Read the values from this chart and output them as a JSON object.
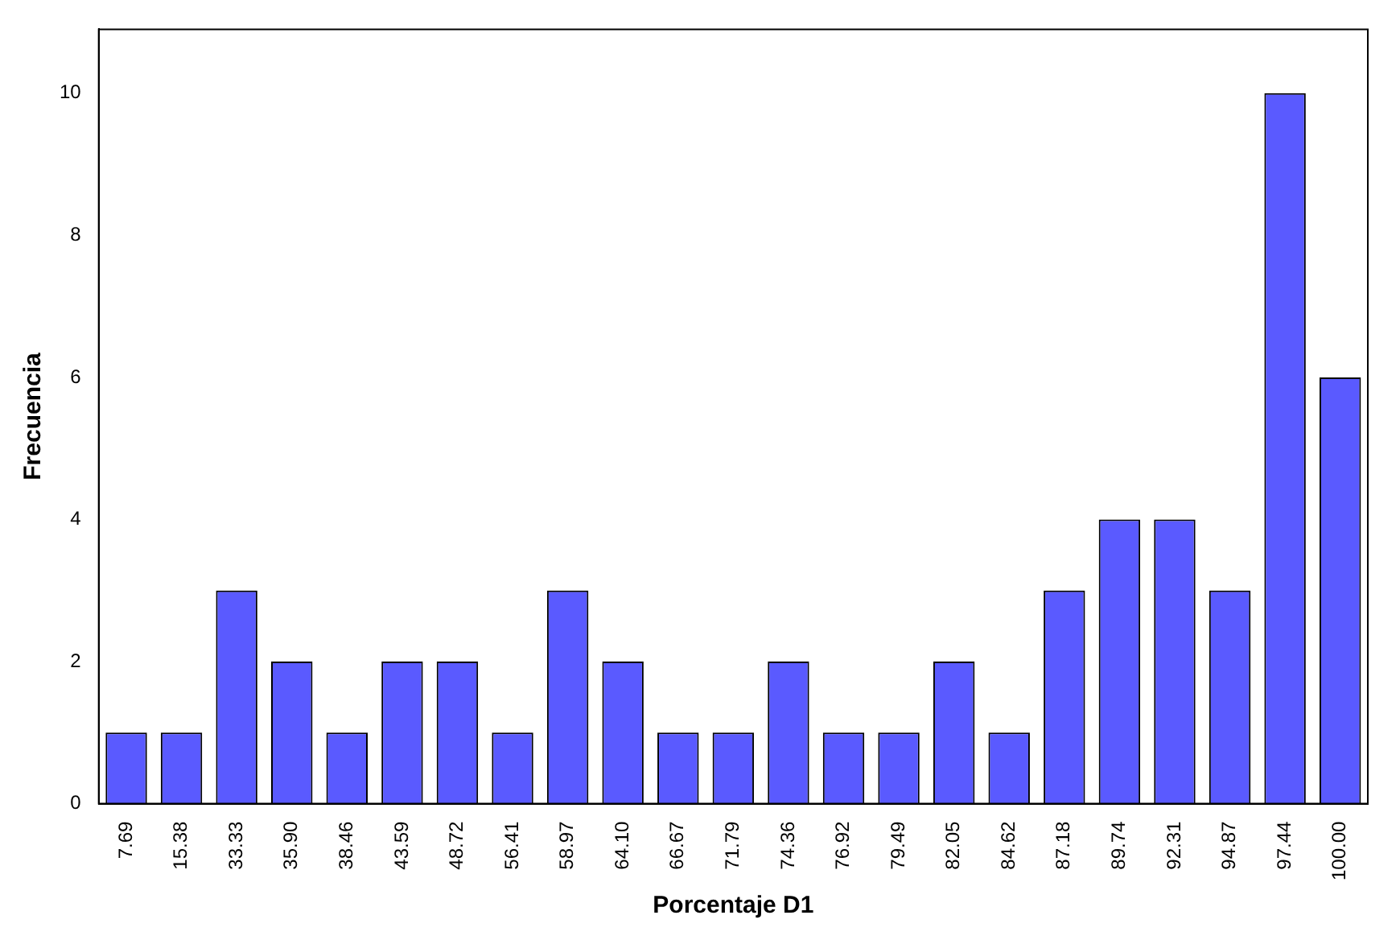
{
  "chart_data": {
    "type": "bar",
    "xlabel": "Porcentaje D1",
    "ylabel": "Frecuencia",
    "categories": [
      "7.69",
      "15.38",
      "33.33",
      "35.90",
      "38.46",
      "43.59",
      "48.72",
      "56.41",
      "58.97",
      "64.10",
      "66.67",
      "71.79",
      "74.36",
      "76.92",
      "79.49",
      "82.05",
      "84.62",
      "87.18",
      "89.74",
      "92.31",
      "94.87",
      "97.44",
      "100.00"
    ],
    "values": [
      1,
      1,
      3,
      2,
      1,
      2,
      2,
      1,
      3,
      2,
      1,
      1,
      2,
      1,
      1,
      2,
      1,
      3,
      4,
      4,
      3,
      10,
      6
    ],
    "color": "#5a5aff",
    "ylim": [
      0,
      10.9
    ],
    "yticks": [
      0,
      2,
      4,
      6,
      8,
      10
    ],
    "grid": false,
    "legend": false
  }
}
